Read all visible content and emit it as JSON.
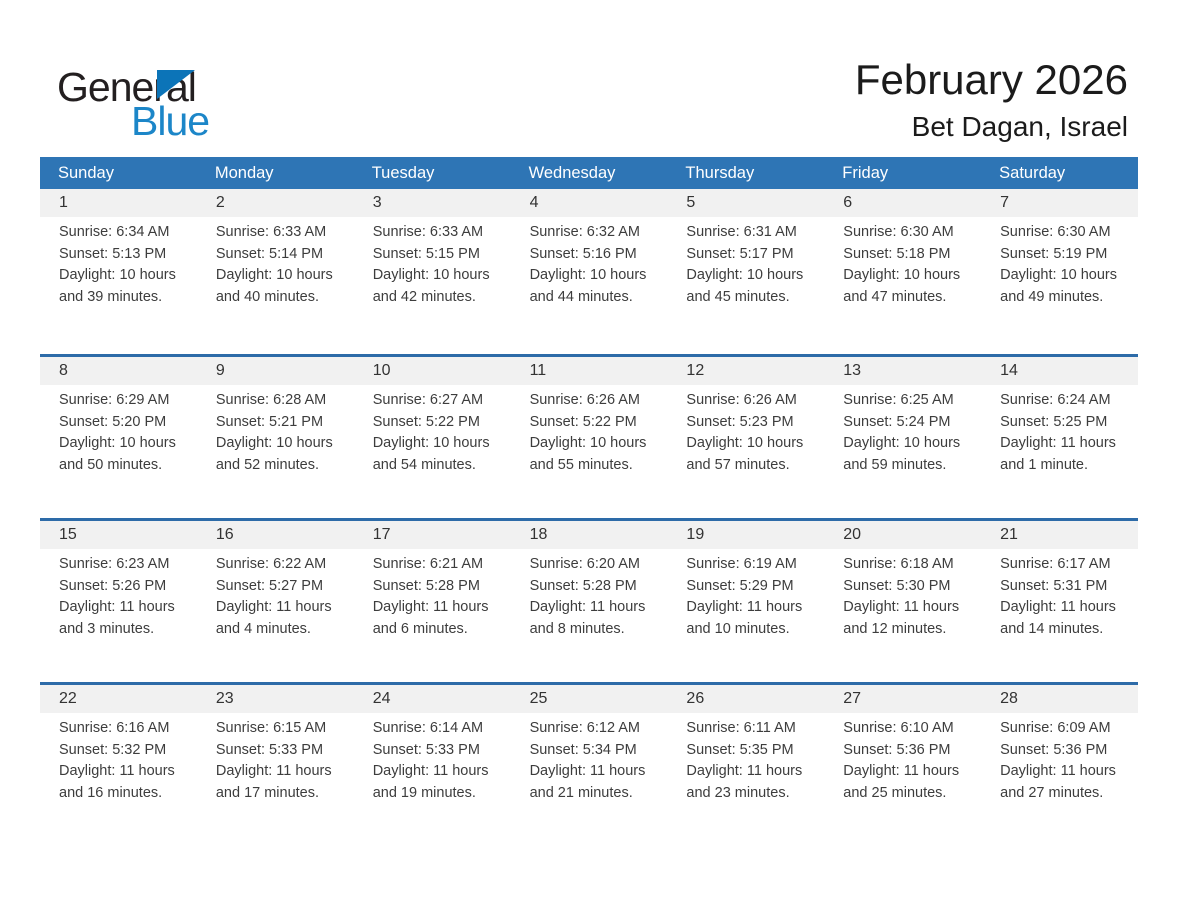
{
  "logo": {
    "text_general": "General",
    "text_blue": "Blue"
  },
  "header": {
    "month_title": "February 2026",
    "location": "Bet Dagan, Israel"
  },
  "colors": {
    "header_bar": "#2E75B5",
    "week_border": "#2D6BA8",
    "day_band": "#F1F1F1",
    "logo_blue": "#1C86C8",
    "logo_triangle": "#0C74B8"
  },
  "weekdays": [
    "Sunday",
    "Monday",
    "Tuesday",
    "Wednesday",
    "Thursday",
    "Friday",
    "Saturday"
  ],
  "weeks": [
    [
      {
        "day": "1",
        "lines": [
          "Sunrise: 6:34 AM",
          "Sunset: 5:13 PM",
          "Daylight: 10 hours",
          "and 39 minutes."
        ]
      },
      {
        "day": "2",
        "lines": [
          "Sunrise: 6:33 AM",
          "Sunset: 5:14 PM",
          "Daylight: 10 hours",
          "and 40 minutes."
        ]
      },
      {
        "day": "3",
        "lines": [
          "Sunrise: 6:33 AM",
          "Sunset: 5:15 PM",
          "Daylight: 10 hours",
          "and 42 minutes."
        ]
      },
      {
        "day": "4",
        "lines": [
          "Sunrise: 6:32 AM",
          "Sunset: 5:16 PM",
          "Daylight: 10 hours",
          "and 44 minutes."
        ]
      },
      {
        "day": "5",
        "lines": [
          "Sunrise: 6:31 AM",
          "Sunset: 5:17 PM",
          "Daylight: 10 hours",
          "and 45 minutes."
        ]
      },
      {
        "day": "6",
        "lines": [
          "Sunrise: 6:30 AM",
          "Sunset: 5:18 PM",
          "Daylight: 10 hours",
          "and 47 minutes."
        ]
      },
      {
        "day": "7",
        "lines": [
          "Sunrise: 6:30 AM",
          "Sunset: 5:19 PM",
          "Daylight: 10 hours",
          "and 49 minutes."
        ]
      }
    ],
    [
      {
        "day": "8",
        "lines": [
          "Sunrise: 6:29 AM",
          "Sunset: 5:20 PM",
          "Daylight: 10 hours",
          "and 50 minutes."
        ]
      },
      {
        "day": "9",
        "lines": [
          "Sunrise: 6:28 AM",
          "Sunset: 5:21 PM",
          "Daylight: 10 hours",
          "and 52 minutes."
        ]
      },
      {
        "day": "10",
        "lines": [
          "Sunrise: 6:27 AM",
          "Sunset: 5:22 PM",
          "Daylight: 10 hours",
          "and 54 minutes."
        ]
      },
      {
        "day": "11",
        "lines": [
          "Sunrise: 6:26 AM",
          "Sunset: 5:22 PM",
          "Daylight: 10 hours",
          "and 55 minutes."
        ]
      },
      {
        "day": "12",
        "lines": [
          "Sunrise: 6:26 AM",
          "Sunset: 5:23 PM",
          "Daylight: 10 hours",
          "and 57 minutes."
        ]
      },
      {
        "day": "13",
        "lines": [
          "Sunrise: 6:25 AM",
          "Sunset: 5:24 PM",
          "Daylight: 10 hours",
          "and 59 minutes."
        ]
      },
      {
        "day": "14",
        "lines": [
          "Sunrise: 6:24 AM",
          "Sunset: 5:25 PM",
          "Daylight: 11 hours",
          "and 1 minute."
        ]
      }
    ],
    [
      {
        "day": "15",
        "lines": [
          "Sunrise: 6:23 AM",
          "Sunset: 5:26 PM",
          "Daylight: 11 hours",
          "and 3 minutes."
        ]
      },
      {
        "day": "16",
        "lines": [
          "Sunrise: 6:22 AM",
          "Sunset: 5:27 PM",
          "Daylight: 11 hours",
          "and 4 minutes."
        ]
      },
      {
        "day": "17",
        "lines": [
          "Sunrise: 6:21 AM",
          "Sunset: 5:28 PM",
          "Daylight: 11 hours",
          "and 6 minutes."
        ]
      },
      {
        "day": "18",
        "lines": [
          "Sunrise: 6:20 AM",
          "Sunset: 5:28 PM",
          "Daylight: 11 hours",
          "and 8 minutes."
        ]
      },
      {
        "day": "19",
        "lines": [
          "Sunrise: 6:19 AM",
          "Sunset: 5:29 PM",
          "Daylight: 11 hours",
          "and 10 minutes."
        ]
      },
      {
        "day": "20",
        "lines": [
          "Sunrise: 6:18 AM",
          "Sunset: 5:30 PM",
          "Daylight: 11 hours",
          "and 12 minutes."
        ]
      },
      {
        "day": "21",
        "lines": [
          "Sunrise: 6:17 AM",
          "Sunset: 5:31 PM",
          "Daylight: 11 hours",
          "and 14 minutes."
        ]
      }
    ],
    [
      {
        "day": "22",
        "lines": [
          "Sunrise: 6:16 AM",
          "Sunset: 5:32 PM",
          "Daylight: 11 hours",
          "and 16 minutes."
        ]
      },
      {
        "day": "23",
        "lines": [
          "Sunrise: 6:15 AM",
          "Sunset: 5:33 PM",
          "Daylight: 11 hours",
          "and 17 minutes."
        ]
      },
      {
        "day": "24",
        "lines": [
          "Sunrise: 6:14 AM",
          "Sunset: 5:33 PM",
          "Daylight: 11 hours",
          "and 19 minutes."
        ]
      },
      {
        "day": "25",
        "lines": [
          "Sunrise: 6:12 AM",
          "Sunset: 5:34 PM",
          "Daylight: 11 hours",
          "and 21 minutes."
        ]
      },
      {
        "day": "26",
        "lines": [
          "Sunrise: 6:11 AM",
          "Sunset: 5:35 PM",
          "Daylight: 11 hours",
          "and 23 minutes."
        ]
      },
      {
        "day": "27",
        "lines": [
          "Sunrise: 6:10 AM",
          "Sunset: 5:36 PM",
          "Daylight: 11 hours",
          "and 25 minutes."
        ]
      },
      {
        "day": "28",
        "lines": [
          "Sunrise: 6:09 AM",
          "Sunset: 5:36 PM",
          "Daylight: 11 hours",
          "and 27 minutes."
        ]
      }
    ]
  ]
}
